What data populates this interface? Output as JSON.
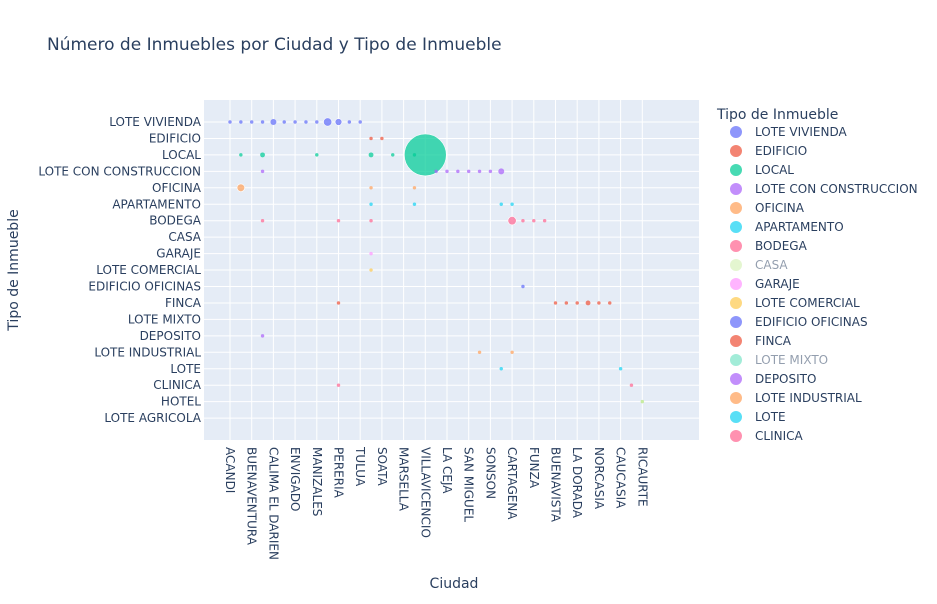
{
  "chart_data": {
    "type": "scatter",
    "title": "Número de Inmuebles por Ciudad y Tipo de Inmueble",
    "xlabel": "Ciudad",
    "ylabel": "Tipo de Inmueble",
    "x_tick_labels": [
      "ACANDI",
      "BUENAVENTURA",
      "CALIMA EL DARIEN",
      "ENVIGADO",
      "MANIZALES",
      "PERERIA",
      "TULUA",
      "SOATA",
      "MARSELLA",
      "VILLAVICENCIO",
      "LA CEJA",
      "SAN MIGUEL",
      "SONSON",
      "CARTAGENA",
      "FUNZA",
      "BUENAVISTA",
      "LA DORADA",
      "NORCASIA",
      "CAUCASIA",
      "RICAURTE"
    ],
    "y_categories": [
      "LOTE VIVIENDA",
      "EDIFICIO",
      "LOCAL",
      "LOTE CON CONSTRUCCION",
      "OFICINA",
      "APARTAMENTO",
      "BODEGA",
      "CASA",
      "GARAJE",
      "LOTE COMERCIAL",
      "EDIFICIO OFICINAS",
      "FINCA",
      "LOTE MIXTO",
      "DEPOSITO",
      "LOTE INDUSTRIAL",
      "LOTE",
      "CLINICA",
      "HOTEL",
      "LOTE AGRICOLA"
    ],
    "grid": true,
    "legend": {
      "title": "Tipo de Inmueble",
      "placement": "right",
      "items": [
        {
          "name": "LOTE VIVIENDA",
          "color": "#636efa",
          "active": true
        },
        {
          "name": "EDIFICIO",
          "color": "#EF553B",
          "active": true
        },
        {
          "name": "LOCAL",
          "color": "#00cc96",
          "active": true
        },
        {
          "name": "LOTE CON CONSTRUCCION",
          "color": "#ab63fa",
          "active": true
        },
        {
          "name": "OFICINA",
          "color": "#FFA15A",
          "active": true
        },
        {
          "name": "APARTAMENTO",
          "color": "#19d3f3",
          "active": true
        },
        {
          "name": "BODEGA",
          "color": "#FF6692",
          "active": true
        },
        {
          "name": "CASA",
          "color": "#B6E880",
          "active": false
        },
        {
          "name": "GARAJE",
          "color": "#FF97FF",
          "active": true
        },
        {
          "name": "LOTE COMERCIAL",
          "color": "#FECB52",
          "active": true
        },
        {
          "name": "EDIFICIO OFICINAS",
          "color": "#636efa",
          "active": true
        },
        {
          "name": "FINCA",
          "color": "#EF553B",
          "active": true
        },
        {
          "name": "LOTE MIXTO",
          "color": "#00cc96",
          "active": false
        },
        {
          "name": "DEPOSITO",
          "color": "#ab63fa",
          "active": true
        },
        {
          "name": "LOTE INDUSTRIAL",
          "color": "#FFA15A",
          "active": true
        },
        {
          "name": "LOTE",
          "color": "#19d3f3",
          "active": true
        },
        {
          "name": "CLINICA",
          "color": "#FF6692",
          "active": true
        }
      ]
    },
    "points": [
      {
        "x": 0.0,
        "cat": "LOTE VIVIENDA",
        "size": 1
      },
      {
        "x": 0.5,
        "cat": "LOTE VIVIENDA",
        "size": 1
      },
      {
        "x": 1.0,
        "cat": "LOTE VIVIENDA",
        "size": 1
      },
      {
        "x": 1.5,
        "cat": "LOTE VIVIENDA",
        "size": 1
      },
      {
        "x": 2.0,
        "cat": "LOTE VIVIENDA",
        "size": 3
      },
      {
        "x": 2.5,
        "cat": "LOTE VIVIENDA",
        "size": 1
      },
      {
        "x": 3.0,
        "cat": "LOTE VIVIENDA",
        "size": 1
      },
      {
        "x": 3.5,
        "cat": "LOTE VIVIENDA",
        "size": 1
      },
      {
        "x": 4.0,
        "cat": "LOTE VIVIENDA",
        "size": 1
      },
      {
        "x": 4.5,
        "cat": "LOTE VIVIENDA",
        "size": 6
      },
      {
        "x": 5.0,
        "cat": "LOTE VIVIENDA",
        "size": 4
      },
      {
        "x": 5.5,
        "cat": "LOTE VIVIENDA",
        "size": 1
      },
      {
        "x": 6.0,
        "cat": "LOTE VIVIENDA",
        "size": 1
      },
      {
        "x": 6.5,
        "cat": "EDIFICIO",
        "size": 1
      },
      {
        "x": 7.0,
        "cat": "EDIFICIO",
        "size": 1
      },
      {
        "x": 0.5,
        "cat": "LOCAL",
        "size": 1
      },
      {
        "x": 1.5,
        "cat": "LOCAL",
        "size": 2
      },
      {
        "x": 4.0,
        "cat": "LOCAL",
        "size": 1
      },
      {
        "x": 6.5,
        "cat": "LOCAL",
        "size": 2
      },
      {
        "x": 7.5,
        "cat": "LOCAL",
        "size": 1
      },
      {
        "x": 8.5,
        "cat": "LOCAL",
        "size": 1
      },
      {
        "x": 9.0,
        "cat": "LOCAL",
        "size": 150
      },
      {
        "x": 9.5,
        "cat": "LOTE CON CONSTRUCCION",
        "size": 1
      },
      {
        "x": 10.0,
        "cat": "LOTE CON CONSTRUCCION",
        "size": 1
      },
      {
        "x": 10.5,
        "cat": "LOTE CON CONSTRUCCION",
        "size": 1
      },
      {
        "x": 11.0,
        "cat": "LOTE CON CONSTRUCCION",
        "size": 1
      },
      {
        "x": 11.5,
        "cat": "LOTE CON CONSTRUCCION",
        "size": 1
      },
      {
        "x": 12.0,
        "cat": "LOTE CON CONSTRUCCION",
        "size": 1
      },
      {
        "x": 12.5,
        "cat": "LOTE CON CONSTRUCCION",
        "size": 3
      },
      {
        "x": 1.5,
        "cat": "LOTE CON CONSTRUCCION",
        "size": 1
      },
      {
        "x": 0.5,
        "cat": "OFICINA",
        "size": 5
      },
      {
        "x": 6.5,
        "cat": "OFICINA",
        "size": 1
      },
      {
        "x": 8.5,
        "cat": "OFICINA",
        "size": 1
      },
      {
        "x": 6.5,
        "cat": "APARTAMENTO",
        "size": 1
      },
      {
        "x": 8.5,
        "cat": "APARTAMENTO",
        "size": 1
      },
      {
        "x": 12.5,
        "cat": "APARTAMENTO",
        "size": 1
      },
      {
        "x": 13.0,
        "cat": "APARTAMENTO",
        "size": 1
      },
      {
        "x": 1.5,
        "cat": "BODEGA",
        "size": 1
      },
      {
        "x": 5.0,
        "cat": "BODEGA",
        "size": 1
      },
      {
        "x": 6.5,
        "cat": "BODEGA",
        "size": 1
      },
      {
        "x": 13.0,
        "cat": "BODEGA",
        "size": 6
      },
      {
        "x": 13.5,
        "cat": "BODEGA",
        "size": 1
      },
      {
        "x": 14.0,
        "cat": "BODEGA",
        "size": 1
      },
      {
        "x": 14.5,
        "cat": "BODEGA",
        "size": 1
      },
      {
        "x": 6.5,
        "cat": "GARAJE",
        "size": 1
      },
      {
        "x": 6.5,
        "cat": "LOTE COMERCIAL",
        "size": 1
      },
      {
        "x": 13.5,
        "cat": "EDIFICIO OFICINAS",
        "size": 1
      },
      {
        "x": 5.0,
        "cat": "FINCA",
        "size": 1
      },
      {
        "x": 15.0,
        "cat": "FINCA",
        "size": 1
      },
      {
        "x": 15.5,
        "cat": "FINCA",
        "size": 1
      },
      {
        "x": 16.0,
        "cat": "FINCA",
        "size": 1
      },
      {
        "x": 16.5,
        "cat": "FINCA",
        "size": 2
      },
      {
        "x": 17.0,
        "cat": "FINCA",
        "size": 1
      },
      {
        "x": 17.5,
        "cat": "FINCA",
        "size": 1
      },
      {
        "x": 1.5,
        "cat": "DEPOSITO",
        "size": 1
      },
      {
        "x": 11.5,
        "cat": "LOTE INDUSTRIAL",
        "size": 1
      },
      {
        "x": 13.0,
        "cat": "LOTE INDUSTRIAL",
        "size": 1
      },
      {
        "x": 12.5,
        "cat": "LOTE",
        "size": 1
      },
      {
        "x": 18.0,
        "cat": "LOTE",
        "size": 1
      },
      {
        "x": 5.0,
        "cat": "CLINICA",
        "size": 1
      },
      {
        "x": 18.5,
        "cat": "CLINICA",
        "size": 1
      },
      {
        "x": 19.0,
        "cat": "HOTEL",
        "size": 1
      }
    ]
  }
}
